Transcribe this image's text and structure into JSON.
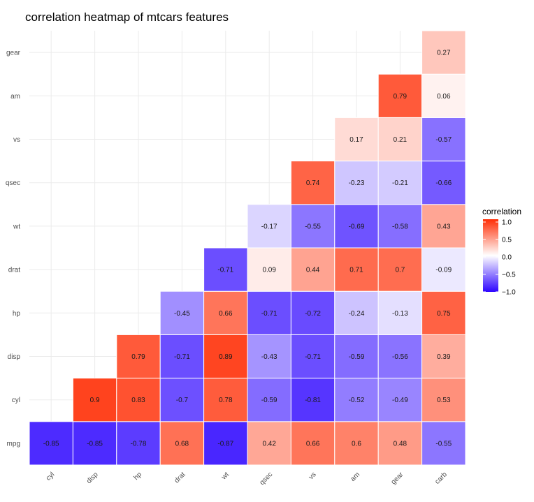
{
  "chart_data": {
    "type": "heatmap",
    "title": "correlation heatmap of mtcars features",
    "x_categories": [
      "cyl",
      "disp",
      "hp",
      "drat",
      "wt",
      "qsec",
      "vs",
      "am",
      "gear",
      "carb"
    ],
    "y_categories": [
      "mpg",
      "cyl",
      "disp",
      "hp",
      "drat",
      "wt",
      "qsec",
      "vs",
      "am",
      "gear"
    ],
    "cells": [
      {
        "x": "cyl",
        "y": "mpg",
        "value": -0.85,
        "label": "-0.85"
      },
      {
        "x": "disp",
        "y": "mpg",
        "value": -0.85,
        "label": "-0.85"
      },
      {
        "x": "hp",
        "y": "mpg",
        "value": -0.78,
        "label": "-0.78"
      },
      {
        "x": "drat",
        "y": "mpg",
        "value": 0.68,
        "label": "0.68"
      },
      {
        "x": "wt",
        "y": "mpg",
        "value": -0.87,
        "label": "-0.87"
      },
      {
        "x": "qsec",
        "y": "mpg",
        "value": 0.42,
        "label": "0.42"
      },
      {
        "x": "vs",
        "y": "mpg",
        "value": 0.66,
        "label": "0.66"
      },
      {
        "x": "am",
        "y": "mpg",
        "value": 0.6,
        "label": "0.6"
      },
      {
        "x": "gear",
        "y": "mpg",
        "value": 0.48,
        "label": "0.48"
      },
      {
        "x": "carb",
        "y": "mpg",
        "value": -0.55,
        "label": "-0.55"
      },
      {
        "x": "disp",
        "y": "cyl",
        "value": 0.9,
        "label": "0.9"
      },
      {
        "x": "hp",
        "y": "cyl",
        "value": 0.83,
        "label": "0.83"
      },
      {
        "x": "drat",
        "y": "cyl",
        "value": -0.7,
        "label": "-0.7"
      },
      {
        "x": "wt",
        "y": "cyl",
        "value": 0.78,
        "label": "0.78"
      },
      {
        "x": "qsec",
        "y": "cyl",
        "value": -0.59,
        "label": "-0.59"
      },
      {
        "x": "vs",
        "y": "cyl",
        "value": -0.81,
        "label": "-0.81"
      },
      {
        "x": "am",
        "y": "cyl",
        "value": -0.52,
        "label": "-0.52"
      },
      {
        "x": "gear",
        "y": "cyl",
        "value": -0.49,
        "label": "-0.49"
      },
      {
        "x": "carb",
        "y": "cyl",
        "value": 0.53,
        "label": "0.53"
      },
      {
        "x": "hp",
        "y": "disp",
        "value": 0.79,
        "label": "0.79"
      },
      {
        "x": "drat",
        "y": "disp",
        "value": -0.71,
        "label": "-0.71"
      },
      {
        "x": "wt",
        "y": "disp",
        "value": 0.89,
        "label": "0.89"
      },
      {
        "x": "qsec",
        "y": "disp",
        "value": -0.43,
        "label": "-0.43"
      },
      {
        "x": "vs",
        "y": "disp",
        "value": -0.71,
        "label": "-0.71"
      },
      {
        "x": "am",
        "y": "disp",
        "value": -0.59,
        "label": "-0.59"
      },
      {
        "x": "gear",
        "y": "disp",
        "value": -0.56,
        "label": "-0.56"
      },
      {
        "x": "carb",
        "y": "disp",
        "value": 0.39,
        "label": "0.39"
      },
      {
        "x": "drat",
        "y": "hp",
        "value": -0.45,
        "label": "-0.45"
      },
      {
        "x": "wt",
        "y": "hp",
        "value": 0.66,
        "label": "0.66"
      },
      {
        "x": "qsec",
        "y": "hp",
        "value": -0.71,
        "label": "-0.71"
      },
      {
        "x": "vs",
        "y": "hp",
        "value": -0.72,
        "label": "-0.72"
      },
      {
        "x": "am",
        "y": "hp",
        "value": -0.24,
        "label": "-0.24"
      },
      {
        "x": "gear",
        "y": "hp",
        "value": -0.13,
        "label": "-0.13"
      },
      {
        "x": "carb",
        "y": "hp",
        "value": 0.75,
        "label": "0.75"
      },
      {
        "x": "wt",
        "y": "drat",
        "value": -0.71,
        "label": "-0.71"
      },
      {
        "x": "qsec",
        "y": "drat",
        "value": 0.09,
        "label": "0.09"
      },
      {
        "x": "vs",
        "y": "drat",
        "value": 0.44,
        "label": "0.44"
      },
      {
        "x": "am",
        "y": "drat",
        "value": 0.71,
        "label": "0.71"
      },
      {
        "x": "gear",
        "y": "drat",
        "value": 0.7,
        "label": "0.7"
      },
      {
        "x": "carb",
        "y": "drat",
        "value": -0.09,
        "label": "-0.09"
      },
      {
        "x": "qsec",
        "y": "wt",
        "value": -0.17,
        "label": "-0.17"
      },
      {
        "x": "vs",
        "y": "wt",
        "value": -0.55,
        "label": "-0.55"
      },
      {
        "x": "am",
        "y": "wt",
        "value": -0.69,
        "label": "-0.69"
      },
      {
        "x": "gear",
        "y": "wt",
        "value": -0.58,
        "label": "-0.58"
      },
      {
        "x": "carb",
        "y": "wt",
        "value": 0.43,
        "label": "0.43"
      },
      {
        "x": "vs",
        "y": "qsec",
        "value": 0.74,
        "label": "0.74"
      },
      {
        "x": "am",
        "y": "qsec",
        "value": -0.23,
        "label": "-0.23"
      },
      {
        "x": "gear",
        "y": "qsec",
        "value": -0.21,
        "label": "-0.21"
      },
      {
        "x": "carb",
        "y": "qsec",
        "value": -0.66,
        "label": "-0.66"
      },
      {
        "x": "am",
        "y": "vs",
        "value": 0.17,
        "label": "0.17"
      },
      {
        "x": "gear",
        "y": "vs",
        "value": 0.21,
        "label": "0.21"
      },
      {
        "x": "carb",
        "y": "vs",
        "value": -0.57,
        "label": "-0.57"
      },
      {
        "x": "gear",
        "y": "am",
        "value": 0.79,
        "label": "0.79"
      },
      {
        "x": "carb",
        "y": "am",
        "value": 0.06,
        "label": "0.06"
      },
      {
        "x": "carb",
        "y": "gear",
        "value": 0.27,
        "label": "0.27"
      }
    ],
    "color_scale": {
      "low": "#2e05ff",
      "mid": "#ffffff",
      "high": "#ff2e05",
      "limits": [
        -1,
        1
      ]
    },
    "legend": {
      "title": "correlation",
      "position": "right",
      "ticks": [
        1.0,
        0.5,
        0.0,
        -0.5,
        -1.0
      ],
      "tick_labels": [
        "1.0",
        "0.5",
        "0.0",
        "−0.5",
        "−1.0"
      ]
    },
    "grid": true,
    "xlabel": "",
    "ylabel": ""
  }
}
